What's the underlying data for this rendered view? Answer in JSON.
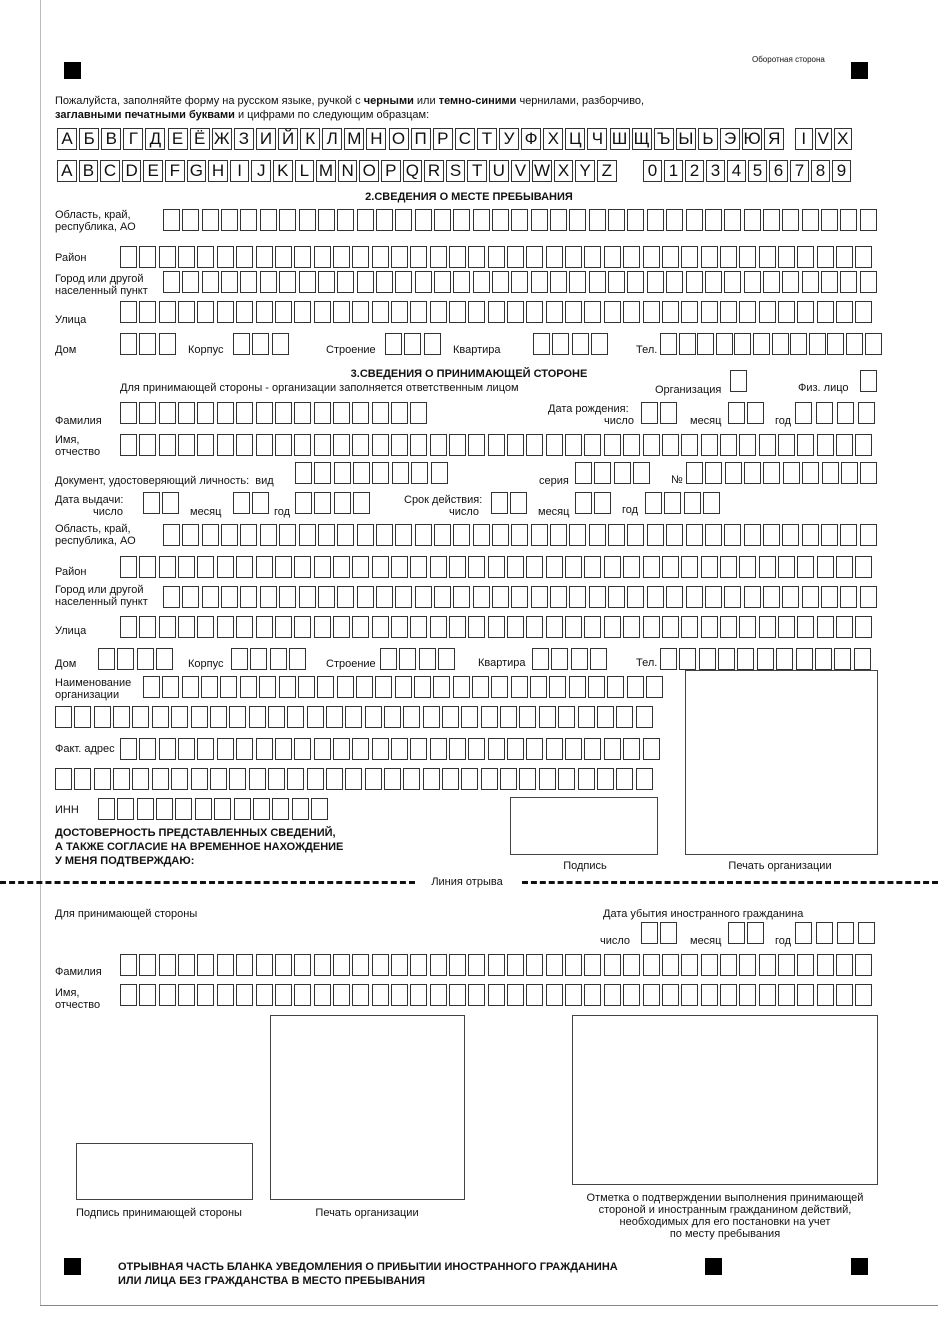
{
  "header": {
    "side": "Оборотная сторона"
  },
  "instructions": {
    "line1_a": "Пожалуйста, заполняйте форму на русском языке, ручкой с ",
    "line1_b": "черными",
    "line1_c": " или ",
    "line1_d": "темно-синими",
    "line1_e": " чернилами, разборчиво,",
    "line2_a": "заглавными печатными буквами",
    "line2_b": " и цифрами по следующим образцам:"
  },
  "samples": {
    "cyrillic": [
      "А",
      "Б",
      "В",
      "Г",
      "Д",
      "Е",
      "Ё",
      "Ж",
      "З",
      "И",
      "Й",
      "К",
      "Л",
      "М",
      "Н",
      "О",
      "П",
      "Р",
      "С",
      "Т",
      "У",
      "Ф",
      "Х",
      "Ц",
      "Ч",
      "Ш",
      "Щ",
      "Ъ",
      "Ы",
      "Ь",
      "Э",
      "Ю",
      "Я"
    ],
    "roman": [
      "I",
      "V",
      "X"
    ],
    "latin": [
      "A",
      "B",
      "C",
      "D",
      "E",
      "F",
      "G",
      "H",
      "I",
      "J",
      "K",
      "L",
      "M",
      "N",
      "O",
      "P",
      "Q",
      "R",
      "S",
      "T",
      "U",
      "V",
      "W",
      "X",
      "Y",
      "Z"
    ],
    "digits": [
      "0",
      "1",
      "2",
      "3",
      "4",
      "5",
      "6",
      "7",
      "8",
      "9"
    ]
  },
  "section2": {
    "title": "2.СВЕДЕНИЯ О МЕСТЕ ПРЕБЫВАНИЯ",
    "region": "Область, край,\nреспублика, АО",
    "district": "Район",
    "city": "Город или другой\nнаселенный пункт",
    "street": "Улица",
    "house": "Дом",
    "building": "Корпус",
    "structure": "Строение",
    "apartment": "Квартира",
    "phone": "Тел."
  },
  "section3": {
    "title": "3.СВЕДЕНИЯ О ПРИНИМАЮЩЕЙ СТОРОНЕ",
    "subtitle": "Для принимающей стороны - организации заполняется ответственным лицом",
    "organization": "Организация",
    "individual": "Физ. лицо",
    "surname": "Фамилия",
    "birth_date": "Дата рождения:",
    "day": "число",
    "month": "месяц",
    "year": "год",
    "name": "Имя,\nотчество",
    "document": "Документ, удостоверяющий личность:  вид",
    "series": "серия",
    "number": "№",
    "issue_date": "Дата выдачи:",
    "validity": "Срок действия:",
    "region": "Область, край,\nреспублика, АО",
    "district": "Район",
    "city": "Город или другой\nнаселенный пункт",
    "street": "Улица",
    "house": "Дом",
    "building": "Корпус",
    "structure": "Строение",
    "apartment": "Квартира",
    "phone": "Тел.",
    "org_name": "Наименование\nорганизации",
    "actual_address": "Факт. адрес",
    "inn": "ИНН",
    "confirm": "ДОСТОВЕРНОСТЬ ПРЕДСТАВЛЕННЫХ СВЕДЕНИЙ,\nА ТАКЖЕ СОГЛАСИЕ НА ВРЕМЕННОЕ НАХОЖДЕНИЕ\nУ МЕНЯ ПОДТВЕРЖДАЮ:",
    "signature": "Подпись",
    "org_stamp": "Печать организации"
  },
  "tear": {
    "label": "Линия отрыва"
  },
  "stub": {
    "for_host": "Для принимающей стороны",
    "departure": "Дата убытия иностранного гражданина",
    "day": "число",
    "month": "месяц",
    "year": "год",
    "surname": "Фамилия",
    "name": "Имя,\nотчество",
    "host_signature": "Подпись принимающей стороны",
    "org_stamp": "Печать организации",
    "mark": "Отметка о подтверждении выполнения принимающей\nстороной и иностранным гражданином действий,\nнеобходимых для его постановки на учет\nпо месту пребывания",
    "footer": "ОТРЫВНАЯ ЧАСТЬ БЛАНКА УВЕДОМЛЕНИЯ О ПРИБЫТИИ ИНОСТРАННОГО ГРАЖДАНИНА\nИЛИ ЛИЦА БЕЗ ГРАЖДАНСТВА В МЕСТО ПРЕБЫВАНИЯ"
  }
}
